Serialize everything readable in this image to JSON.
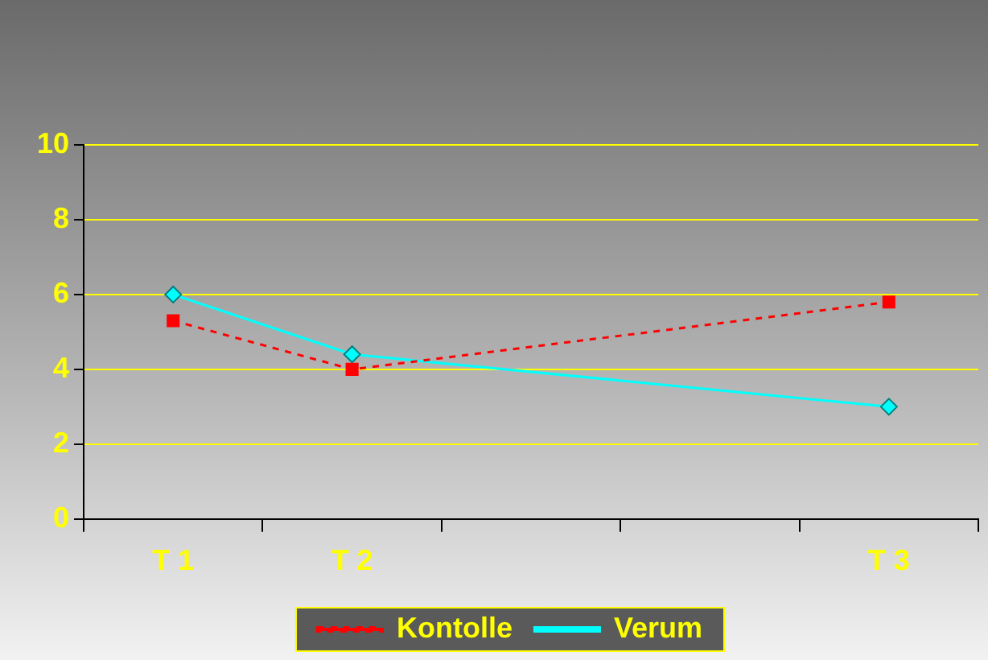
{
  "chart_data": {
    "type": "line",
    "categories": [
      "T 1",
      "T 2",
      null,
      null,
      "T 3"
    ],
    "series": [
      {
        "name": "Kontolle",
        "color": "#ff0000",
        "line_style": "dashed",
        "marker": "square",
        "values": [
          5.3,
          4.0,
          null,
          null,
          5.8
        ]
      },
      {
        "name": "Verum",
        "color": "#00ffff",
        "line_style": "solid",
        "marker": "diamond",
        "values": [
          6.0,
          4.4,
          null,
          null,
          3.0
        ]
      }
    ],
    "ylim": [
      0,
      10
    ],
    "yticks": [
      0,
      2,
      4,
      6,
      8,
      10
    ],
    "grid": "y",
    "legend": "bottom"
  }
}
